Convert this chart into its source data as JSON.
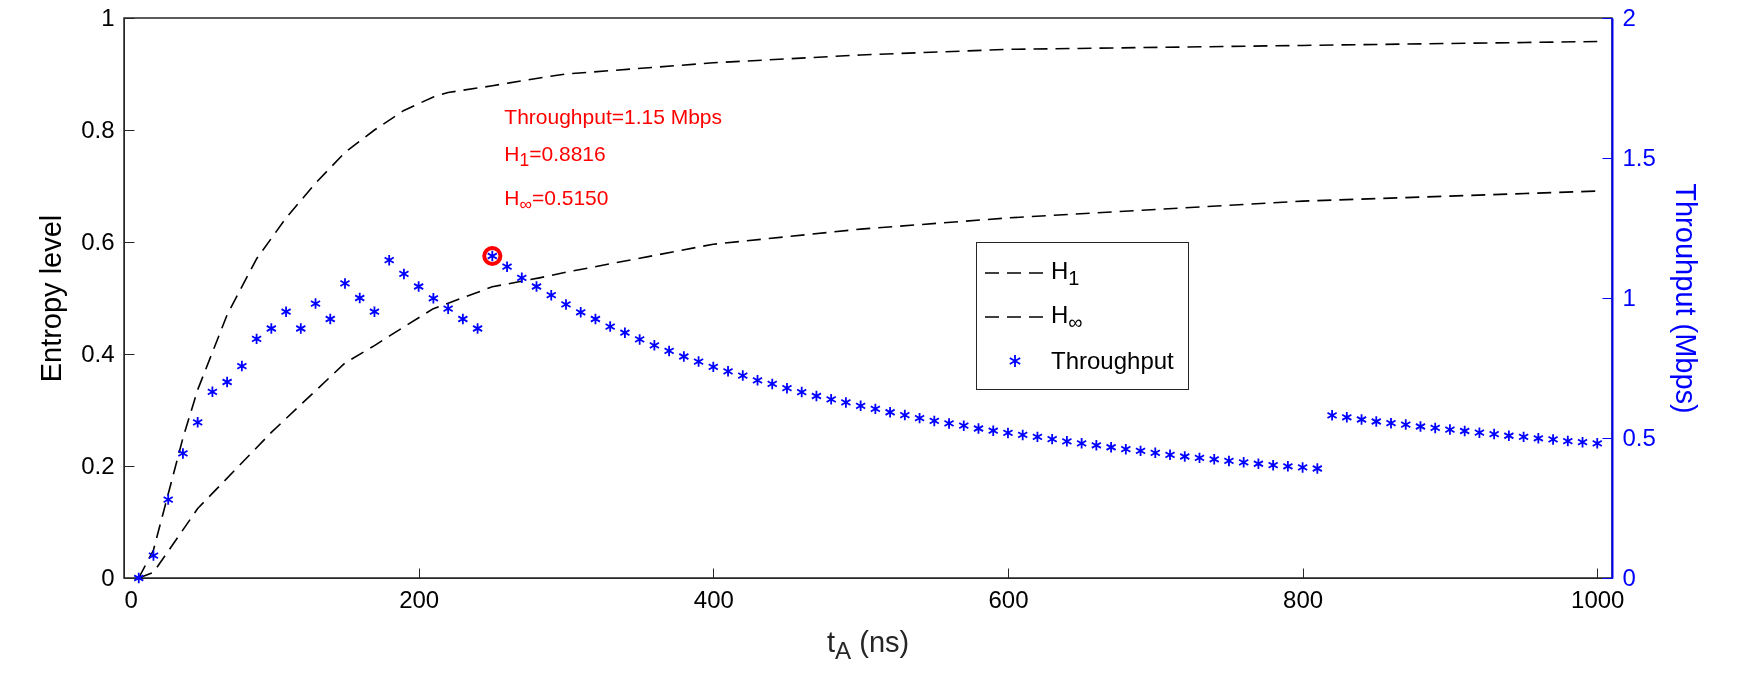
{
  "chart_data": {
    "type": "scatter",
    "xlabel": "t$_{A}$ (ns)",
    "ylabel": "Entropy level",
    "y2label": "Throuhput (Mbps)",
    "xlim": [
      0,
      1010
    ],
    "xticks": [
      0,
      200,
      400,
      600,
      800,
      1000
    ],
    "ylim": [
      0,
      1
    ],
    "yticks": [
      0,
      0.2,
      0.4,
      0.6,
      0.8,
      1
    ],
    "y2lim": [
      0,
      2
    ],
    "y2ticks": [
      0,
      0.5,
      1,
      1.5,
      2
    ],
    "x": [
      10,
      20,
      30,
      40,
      50,
      60,
      70,
      80,
      90,
      100,
      110,
      120,
      130,
      140,
      150,
      160,
      170,
      180,
      190,
      200,
      210,
      220,
      230,
      240,
      250,
      260,
      270,
      280,
      290,
      300,
      310,
      320,
      330,
      340,
      350,
      360,
      370,
      380,
      390,
      400,
      410,
      420,
      430,
      440,
      450,
      460,
      470,
      480,
      490,
      500,
      510,
      520,
      530,
      540,
      550,
      560,
      570,
      580,
      590,
      600,
      610,
      620,
      630,
      640,
      650,
      660,
      670,
      680,
      690,
      700,
      710,
      720,
      730,
      740,
      750,
      760,
      770,
      780,
      790,
      800,
      810,
      820,
      830,
      840,
      850,
      860,
      870,
      880,
      890,
      900,
      910,
      920,
      930,
      940,
      950,
      960,
      970,
      980,
      990,
      1000
    ],
    "series": [
      {
        "name": "H$_{1}$",
        "type": "line",
        "color": "#000000",
        "line_style": "dashed",
        "x": [
          10,
          20,
          30,
          40,
          50,
          70,
          90,
          110,
          130,
          150,
          170,
          190,
          210,
          220,
          250,
          282,
          300,
          400,
          500,
          600,
          800,
          1000
        ],
        "values": [
          0,
          0.05,
          0.15,
          0.25,
          0.336,
          0.47,
          0.57,
          0.643,
          0.705,
          0.76,
          0.8,
          0.835,
          0.859,
          0.867,
          0.879,
          0.893,
          0.9,
          0.92,
          0.934,
          0.944,
          0.951,
          0.958
        ]
      },
      {
        "name": "H$_{∞}$",
        "type": "line",
        "color": "#000000",
        "line_style": "dashed",
        "x": [
          10,
          20,
          50,
          100,
          150,
          170,
          180,
          210,
          250,
          282,
          300,
          400,
          500,
          600,
          800,
          1000
        ],
        "values": [
          0,
          0.01,
          0.124,
          0.26,
          0.384,
          0.415,
          0.432,
          0.481,
          0.52,
          0.536,
          0.546,
          0.596,
          0.623,
          0.643,
          0.673,
          0.691
        ]
      },
      {
        "name": "Throughput",
        "color": "#0000ff",
        "marker": "cross",
        "axis": "y2",
        "values": [
          0,
          0.08,
          0.28,
          0.445,
          0.556,
          0.665,
          0.7,
          0.757,
          0.854,
          0.891,
          0.951,
          0.891,
          0.98,
          0.925,
          1.052,
          1.0,
          0.951,
          1.135,
          1.086,
          1.041,
          0.999,
          0.962,
          0.925,
          0.891,
          1.15,
          1.112,
          1.072,
          1.041,
          1.01,
          0.977,
          0.949,
          0.925,
          0.898,
          0.876,
          0.852,
          0.831,
          0.811,
          0.791,
          0.773,
          0.754,
          0.738,
          0.723,
          0.706,
          0.693,
          0.678,
          0.664,
          0.65,
          0.638,
          0.627,
          0.615,
          0.604,
          0.592,
          0.582,
          0.571,
          0.561,
          0.552,
          0.544,
          0.534,
          0.526,
          0.518,
          0.511,
          0.504,
          0.496,
          0.488,
          0.481,
          0.474,
          0.467,
          0.46,
          0.454,
          0.447,
          0.44,
          0.434,
          0.429,
          0.424,
          0.418,
          0.413,
          0.408,
          0.403,
          0.399,
          0.395,
          0.391,
          0.581,
          0.574,
          0.566,
          0.559,
          0.553,
          0.548,
          0.541,
          0.536,
          0.53,
          0.525,
          0.519,
          0.514,
          0.508,
          0.504,
          0.499,
          0.495,
          0.489,
          0.485,
          0.481
        ]
      },
      {
        "color": "#ff0000",
        "marker": "circle",
        "axis": "y2",
        "x": [
          250
        ],
        "values": [
          1.15
        ]
      }
    ],
    "annotations": [
      "Throughput=1.15 Mbps",
      "H$_{1}$=0.8816",
      "H$_{∞}$=0.5150"
    ],
    "legend": "right",
    "grid": false
  }
}
